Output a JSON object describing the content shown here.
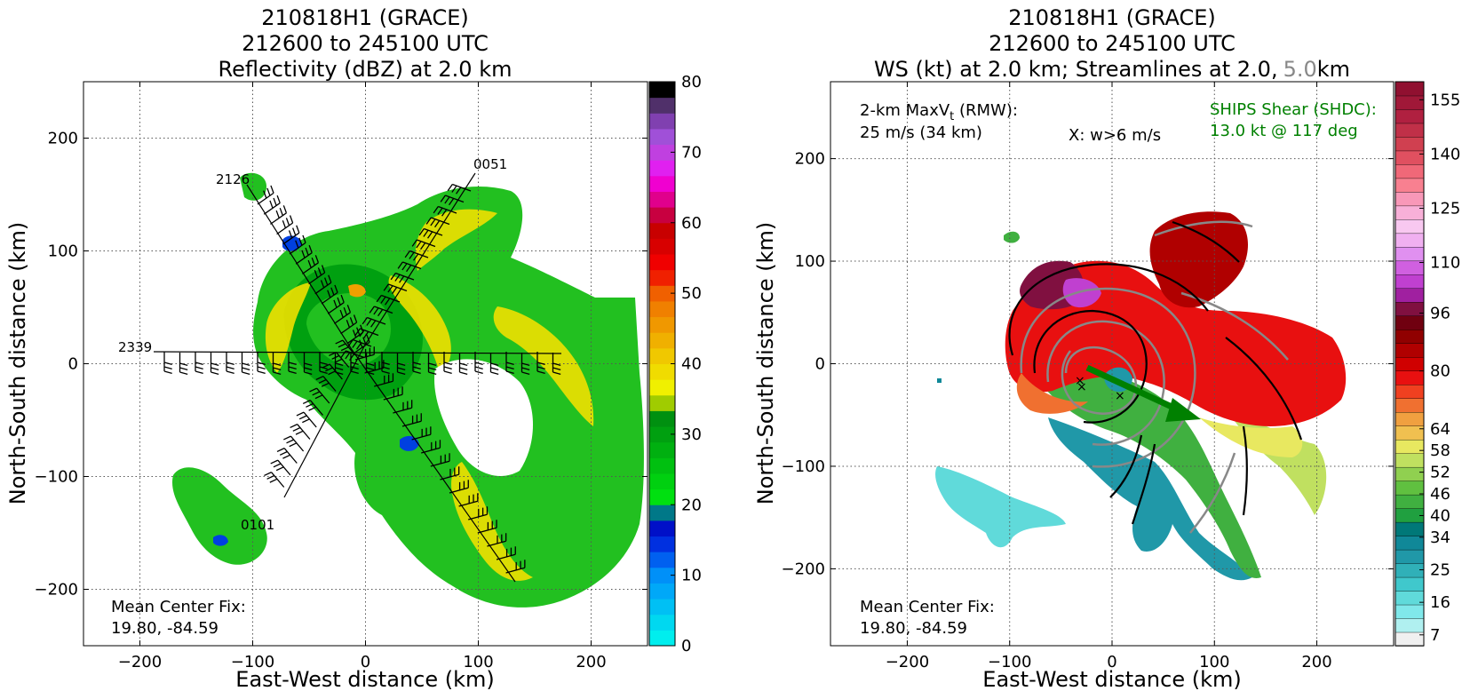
{
  "left": {
    "title_lines": [
      "210818H1 (GRACE)",
      "212600 to 245100 UTC",
      "Reflectivity (dBZ) at 2.0 km"
    ],
    "chart_data": {
      "type": "heatmap",
      "title": "Reflectivity (dBZ) at 2.0 km",
      "xlabel": "East-West distance (km)",
      "ylabel": "North-South distance (km)",
      "xlim": [
        -250,
        250
      ],
      "ylim": [
        -250,
        250
      ],
      "xticks": [
        -200,
        -100,
        0,
        100,
        200
      ],
      "yticks": [
        -200,
        -100,
        0,
        100,
        200
      ],
      "grid": true,
      "colorbar": {
        "label_values": [
          0,
          10,
          20,
          30,
          40,
          50,
          60,
          70,
          80
        ],
        "range": [
          0,
          80
        ],
        "colors": [
          "#00eeee",
          "#00d8f0",
          "#00c0f4",
          "#00a8f8",
          "#0090f8",
          "#0060f0",
          "#0030e0",
          "#0010c8",
          "#007888",
          "#00e010",
          "#00d010",
          "#00c010",
          "#00b010",
          "#00a010",
          "#009010",
          "#a0cc00",
          "#f0f000",
          "#f0dc00",
          "#f0c800",
          "#f0b000",
          "#f09800",
          "#f08000",
          "#f06000",
          "#f02000",
          "#f00000",
          "#d80000",
          "#c80000",
          "#c80040",
          "#e0008c",
          "#f000d0",
          "#e020f0",
          "#c040e0",
          "#a050d8",
          "#8040b0",
          "#50306a",
          "#000000"
        ]
      },
      "flight_leg_labels": [
        "2126",
        "0051",
        "2339",
        "0101"
      ],
      "annotation_lines": [
        "Mean Center Fix:",
        "19.80, -84.59"
      ]
    }
  },
  "right": {
    "title_lines": [
      "210818H1 (GRACE)",
      "212600 to 245100 UTC"
    ],
    "title_line3_prefix": "WS (kt) at 2.0 km; Streamlines at 2.0,",
    "title_line3_gray": "5.0",
    "title_line3_suffix": "km",
    "chart_data": {
      "type": "heatmap",
      "title": "WS (kt) at 2.0 km; Streamlines at 2.0, 5.0 km",
      "xlabel": "East-West distance (km)",
      "ylabel": "North-South distance (km)",
      "xlim": [
        -275,
        275
      ],
      "ylim": [
        -275,
        275
      ],
      "xticks": [
        -200,
        -100,
        0,
        100,
        200
      ],
      "yticks": [
        -200,
        -100,
        0,
        100,
        200
      ],
      "grid": true,
      "colorbar": {
        "label_values": [
          7,
          16,
          25,
          34,
          40,
          46,
          52,
          58,
          64,
          80,
          96,
          110,
          125,
          140,
          155
        ],
        "range": [
          4,
          160
        ],
        "colors": [
          "#f0f0f0",
          "#b0f0f0",
          "#80e8ea",
          "#60dada",
          "#40c8cc",
          "#30b0b8",
          "#2098a8",
          "#108898",
          "#007878",
          "#20a040",
          "#40b040",
          "#60c040",
          "#90d050",
          "#c0e060",
          "#e8e860",
          "#f0c050",
          "#f0a040",
          "#f07030",
          "#f04020",
          "#e81010",
          "#d00000",
          "#b00000",
          "#900000",
          "#700010",
          "#801040",
          "#a020a0",
          "#c040d0",
          "#d060e0",
          "#e090f0",
          "#f0b0f0",
          "#f8c8f0",
          "#f8b0d8",
          "#f898b8",
          "#f88090",
          "#f06878",
          "#e05060",
          "#d04050",
          "#c03048",
          "#b02040",
          "#a01838",
          "#901030"
        ]
      },
      "rmw_lines": [
        "2-km MaxV̅t (RMW):",
        "25 m/s (34 km)"
      ],
      "w_note": "X: w>6 m/s",
      "shear_lines": [
        "SHIPS Shear (SHDC):",
        "13.0 kt @ 117 deg"
      ],
      "annotation_lines": [
        "Mean Center Fix:",
        "19.80, -84.59"
      ]
    }
  },
  "colors": {
    "grid": "#555555",
    "shear_arrow": "#008000",
    "shear_text": "#008000",
    "label_gray": "#666666"
  }
}
